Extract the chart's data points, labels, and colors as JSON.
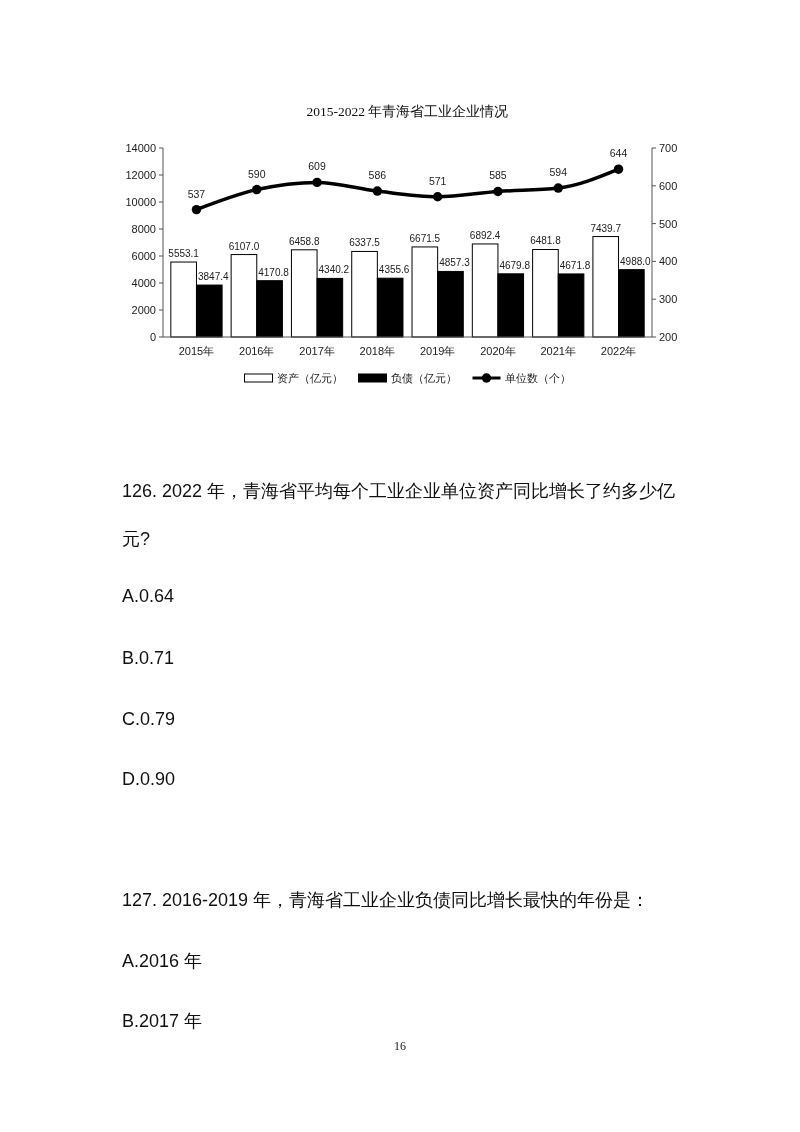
{
  "chart_data": {
    "type": "bar",
    "title": "2015-2022 年青海省工业企业情况",
    "categories": [
      "2015年",
      "2016年",
      "2017年",
      "2018年",
      "2019年",
      "2020年",
      "2021年",
      "2022年"
    ],
    "series": [
      {
        "name": "资产（亿元）",
        "color": "#ffffff",
        "values": [
          5553.1,
          6107.0,
          6458.8,
          6337.5,
          6671.5,
          6892.4,
          6481.8,
          7439.7
        ],
        "value_labels": [
          "5553.1",
          "6107.0",
          "6458.8",
          "6337.5",
          "6671.5",
          "6892.4",
          "6481.8",
          "7439.7"
        ]
      },
      {
        "name": "负债（亿元）",
        "color": "#000000",
        "values": [
          3847.4,
          4170.8,
          4340.2,
          4355.6,
          4857.3,
          4679.8,
          4671.8,
          4988.0
        ],
        "value_labels": [
          "3847.4",
          "4170.8",
          "4340.2",
          "4355.6",
          "4857.3",
          "4679.8",
          "4671.8",
          "4988.0"
        ]
      },
      {
        "name": "单位数（个）",
        "type": "line",
        "axis": "y2",
        "color": "#000000",
        "values": [
          537,
          590,
          609,
          586,
          571,
          585,
          594,
          644
        ],
        "value_labels": [
          "537",
          "590",
          "609",
          "586",
          "571",
          "585",
          "594",
          "644"
        ]
      }
    ],
    "ylim": [
      0,
      14000
    ],
    "yticks": [
      0,
      2000,
      4000,
      6000,
      8000,
      10000,
      12000,
      14000
    ],
    "y2lim": [
      200,
      700
    ],
    "y2ticks": [
      200,
      300,
      400,
      500,
      600,
      700
    ],
    "legend": "bottom",
    "marker": "circle",
    "annotations": [
      "126. 2022 年，青海省平均每个工业企业单位资产同比增长了约多少亿元?",
      "A.0.64",
      "B.0.71",
      "C.0.79",
      "D.0.90",
      "127. 2016-2019 年，青海省工业企业负债同比增长最快的年份是：",
      "A.2016 年",
      "B.2017 年",
      "16"
    ]
  }
}
